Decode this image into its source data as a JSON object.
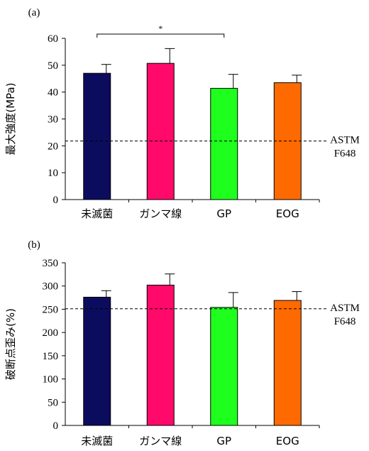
{
  "colors": {
    "bars": [
      "#0c0c5e",
      "#ff0a6a",
      "#1eff1e",
      "#ff6a00"
    ],
    "axis": "#000000"
  },
  "chart_data": [
    {
      "type": "bar",
      "panel_label": "(a)",
      "categories": [
        "未滅菌",
        "ガンマ線",
        "GP",
        "EOG"
      ],
      "values": [
        47,
        50.7,
        41.4,
        43.5
      ],
      "errors": [
        3.3,
        5.5,
        5.2,
        2.8
      ],
      "ylabel": "最大強度(MPa)",
      "ylim": [
        0,
        60
      ],
      "yticks": [
        "0",
        "10",
        "20",
        "30",
        "40",
        "50",
        "60"
      ],
      "reference_line": {
        "value": 21.8,
        "label_line1": "ASTM",
        "label_line2": "F648",
        "style": "dashed"
      },
      "significance": {
        "between": [
          0,
          2
        ],
        "label": "*"
      }
    },
    {
      "type": "bar",
      "panel_label": "(b)",
      "categories": [
        "未滅菌",
        "ガンマ線",
        "GP",
        "EOG"
      ],
      "values": [
        276,
        302,
        254,
        269
      ],
      "errors": [
        14,
        24,
        32,
        19
      ],
      "ylabel": "破断点歪み(%)",
      "ylim": [
        0,
        350
      ],
      "yticks": [
        "0",
        "50",
        "100",
        "150",
        "200",
        "250",
        "300",
        "350"
      ],
      "reference_line": {
        "value": 251,
        "label_line1": "ASTM",
        "label_line2": "F648",
        "style": "dashed"
      }
    }
  ]
}
